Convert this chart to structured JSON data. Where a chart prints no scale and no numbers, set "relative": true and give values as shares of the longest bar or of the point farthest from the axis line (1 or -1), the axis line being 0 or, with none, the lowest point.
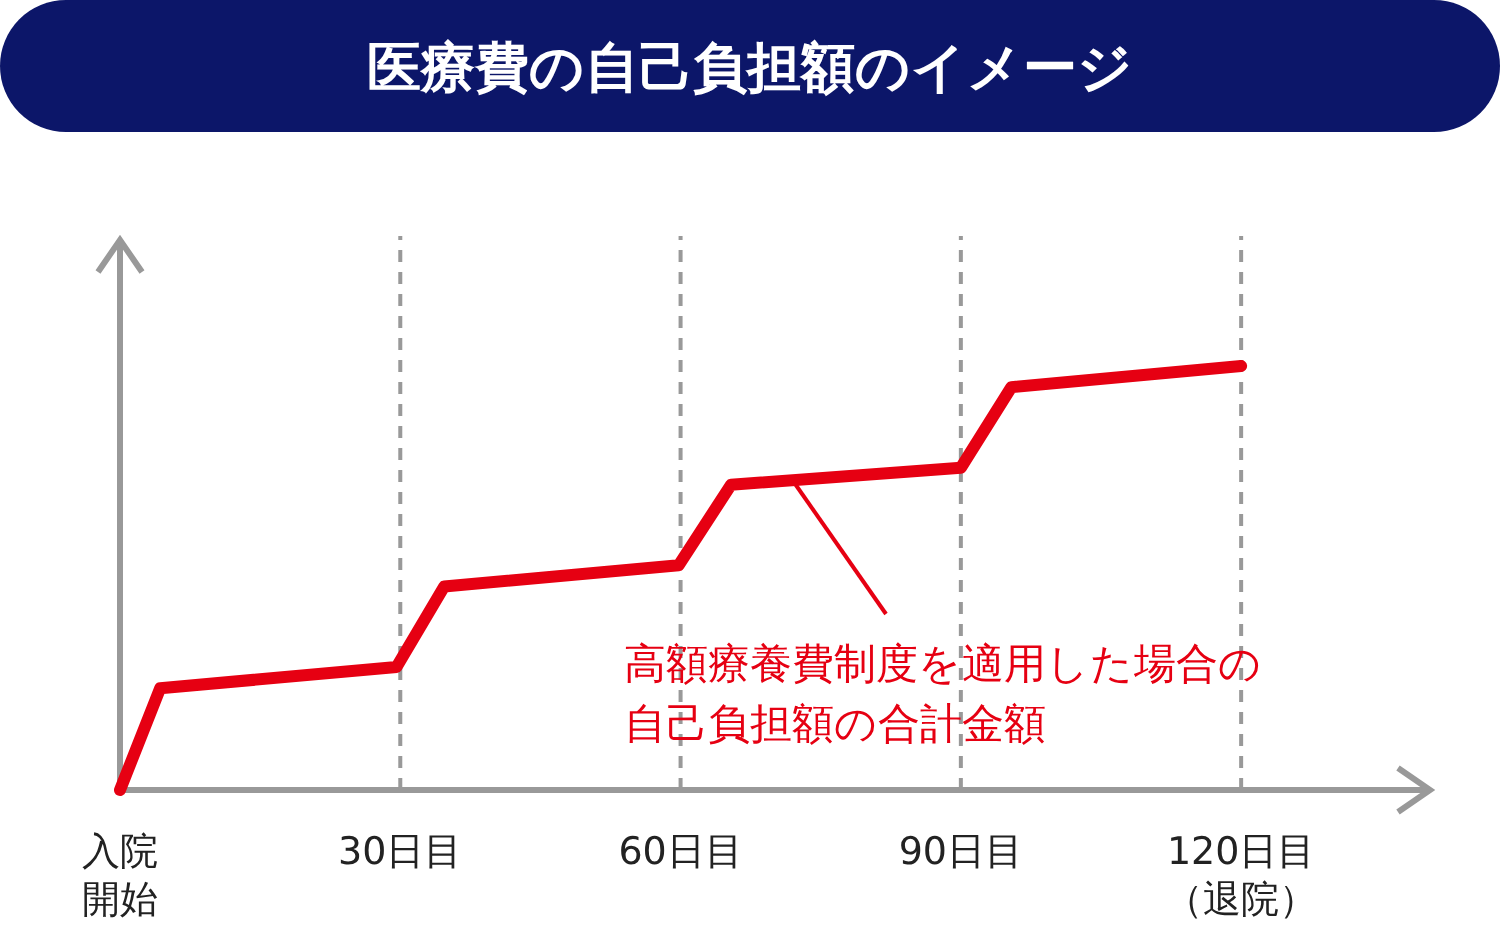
{
  "chart_data": {
    "type": "line",
    "title": "医療費の自己負担額のイメージ",
    "relative": true,
    "x": [
      0,
      4.3,
      29.6,
      34.7,
      59.8,
      65.4,
      90,
      95.4,
      120
    ],
    "xlim": [
      0,
      140
    ],
    "xticks": [
      {
        "value": 0,
        "label": "入院開始"
      },
      {
        "value": 30,
        "label": "30日目"
      },
      {
        "value": 60,
        "label": "60日目"
      },
      {
        "value": 90,
        "label": "90日目"
      },
      {
        "value": 120,
        "label": "120日目（退院）"
      }
    ],
    "series": [
      {
        "color": "#e60012",
        "values": [
          0,
          0.24,
          0.29,
          0.48,
          0.53,
          0.72,
          0.76,
          0.95,
          1
        ]
      }
    ],
    "annotations": [
      {
        "text": "高額療養費制度を適用した場合の自己負担額の合計金額",
        "x": 72,
        "y": 0.73
      }
    ],
    "grid": "x",
    "marker": "none",
    "line_style": "solid"
  }
}
